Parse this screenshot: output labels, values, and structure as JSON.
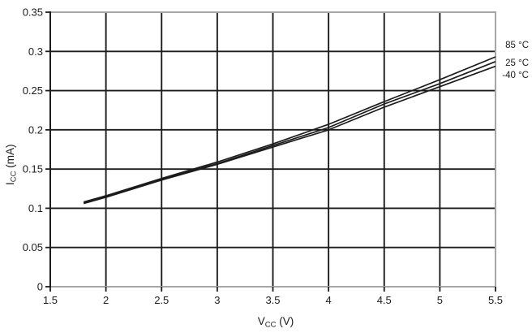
{
  "chart_data": {
    "type": "line",
    "title": "",
    "xlabel": {
      "base": "V",
      "sub": "CC",
      "unit": " (V)"
    },
    "ylabel": {
      "base": "I",
      "sub": "CC",
      "unit": " (mA)"
    },
    "xlim": [
      1.5,
      5.5
    ],
    "ylim": [
      0,
      0.35
    ],
    "grid": "on",
    "legend_position": "right-outside",
    "x_tick_values": [
      1.5,
      2,
      2.5,
      3,
      3.5,
      4,
      4.5,
      5,
      5.5
    ],
    "x_tick_labels": [
      "1.5",
      "2",
      "2.5",
      "3",
      "3.5",
      "4",
      "4.5",
      "5",
      "5.5"
    ],
    "y_tick_values": [
      0,
      0.05,
      0.1,
      0.15,
      0.2,
      0.25,
      0.3,
      0.35
    ],
    "y_tick_labels": [
      "0",
      "0.05",
      "0.1",
      "0.15",
      "0.2",
      "0.25",
      "0.3",
      "0.35"
    ],
    "x": [
      1.8,
      2,
      2.5,
      3,
      3.5,
      4,
      4.5,
      5,
      5.5
    ],
    "series": [
      {
        "name": "85 °C",
        "values": [
          0.108,
          0.116,
          0.138,
          0.159,
          0.182,
          0.207,
          0.236,
          0.264,
          0.293
        ]
      },
      {
        "name": "25 °C",
        "values": [
          0.107,
          0.115,
          0.137,
          0.157,
          0.18,
          0.203,
          0.233,
          0.259,
          0.287
        ]
      },
      {
        "name": "-40 °C",
        "values": [
          0.106,
          0.114,
          0.136,
          0.156,
          0.178,
          0.2,
          0.229,
          0.255,
          0.281
        ]
      }
    ],
    "colors": {
      "grid": "#1c1c1c",
      "border": "#a6a6a6",
      "series": "#1c1c1c",
      "text": "#1c1c1c",
      "background": "#ffffff"
    }
  }
}
